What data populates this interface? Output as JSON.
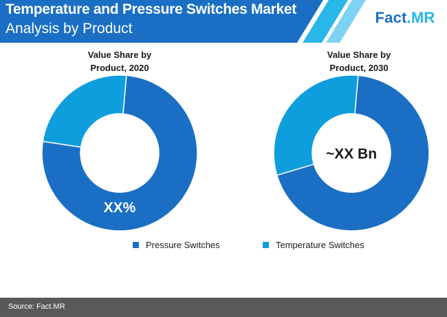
{
  "header": {
    "title_line1": "Temperature and Pressure Switches Market",
    "title_line2": "Analysis by Product",
    "logo_part1": "Fact",
    "logo_part2": ".MR",
    "bar_color": "#1a6fc4",
    "accent_color": "#29b6e8"
  },
  "chart_data": [
    {
      "type": "pie",
      "title_line1": "Value Share by",
      "title_line2": "Product, 2020",
      "center_label": "",
      "slice_label": "XX%",
      "categories": [
        "Pressure Switches",
        "Temperature Switches"
      ],
      "values": [
        76,
        24
      ],
      "colors": [
        "#1a6fc4",
        "#0e9ede"
      ]
    },
    {
      "type": "pie",
      "title_line1": "Value Share by",
      "title_line2": "Product, 2030",
      "center_label": "~XX Bn",
      "slice_label": "",
      "categories": [
        "Pressure Switches",
        "Temperature Switches"
      ],
      "values": [
        69,
        31
      ],
      "colors": [
        "#1a6fc4",
        "#0e9ede"
      ]
    }
  ],
  "legend": {
    "items": [
      {
        "label": "Pressure Switches",
        "color": "#1a6fc4"
      },
      {
        "label": "Temperature Switches",
        "color": "#0e9ede"
      }
    ]
  },
  "footer": {
    "source": "Source: Fact.MR"
  }
}
